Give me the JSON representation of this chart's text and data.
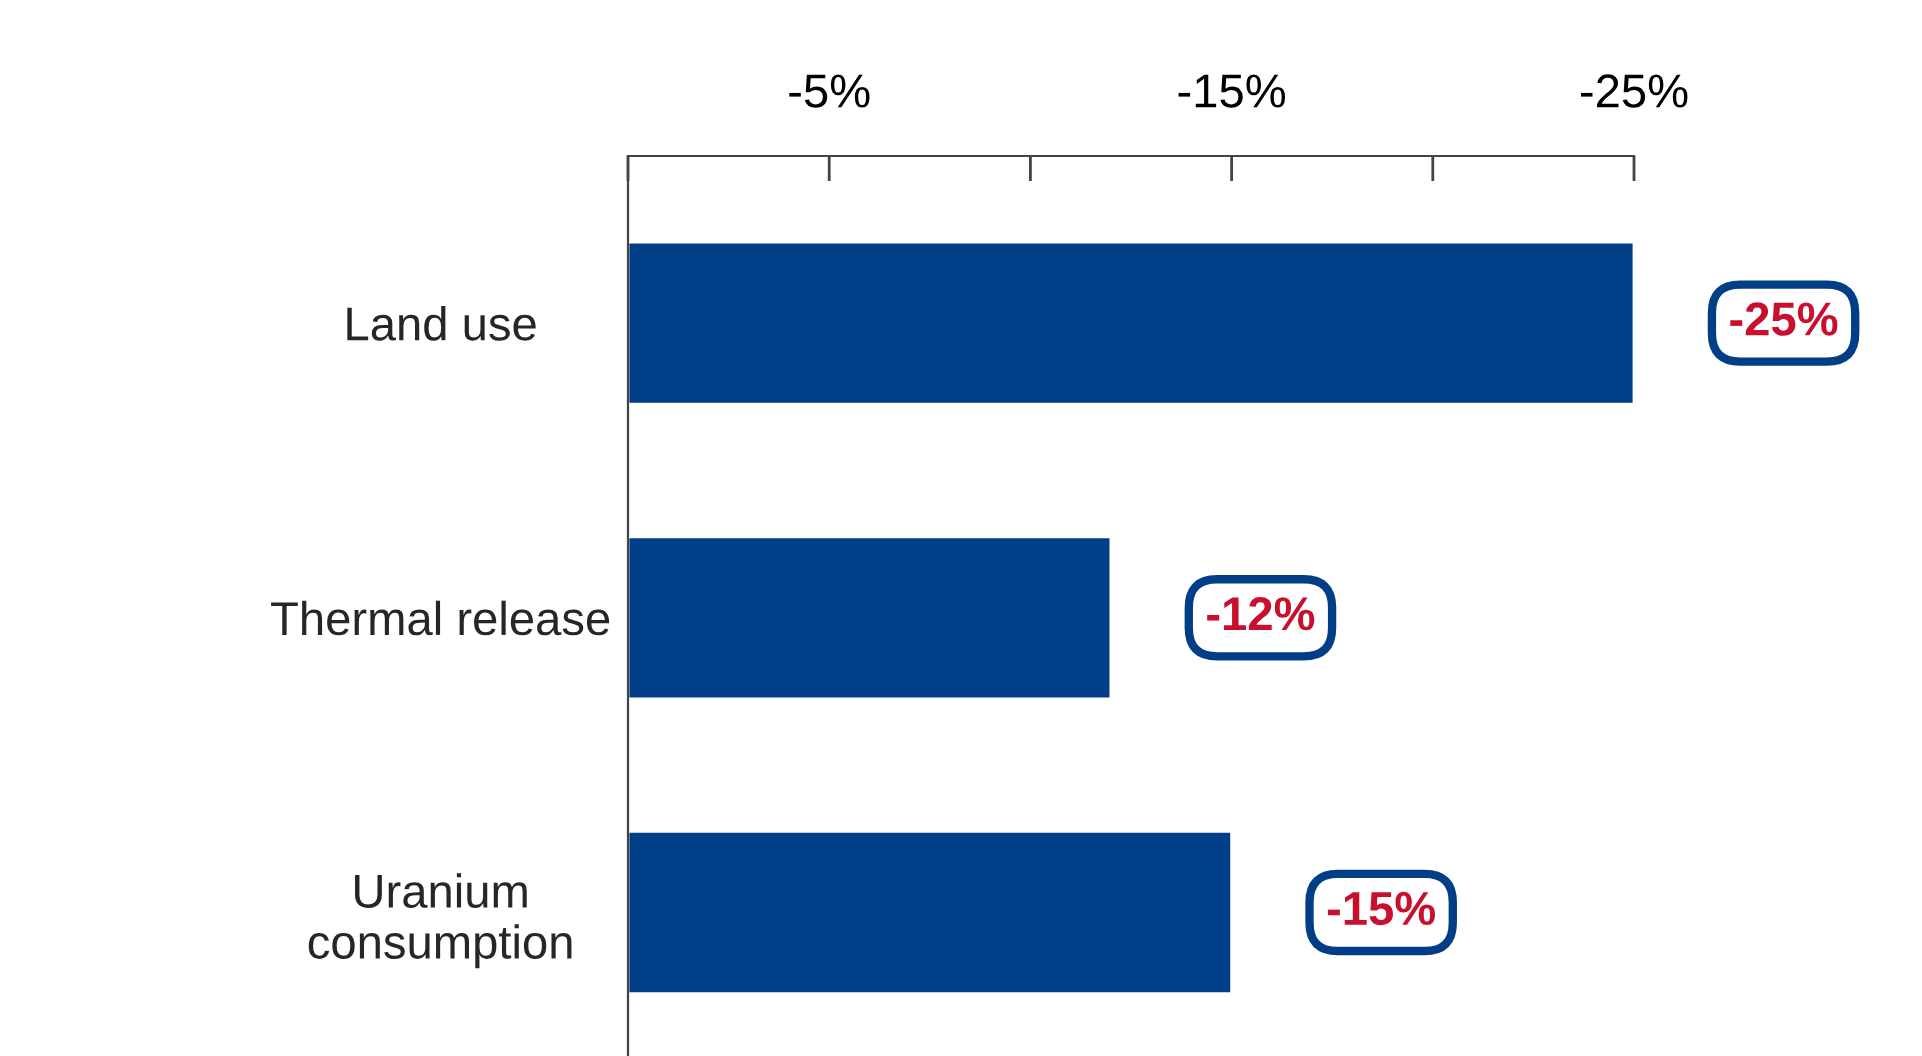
{
  "chart_data": {
    "type": "bar",
    "orientation": "horizontal",
    "categories": [
      "Land use",
      "Thermal release",
      "Uranium\nconsumption"
    ],
    "values": [
      -25,
      -12,
      -15
    ],
    "value_labels": [
      "-25%",
      "-12%",
      "-15%"
    ],
    "color": "#003f87",
    "xlim": [
      0,
      -25
    ],
    "xticks": [
      {
        "value": 0,
        "label": null
      },
      {
        "value": -5,
        "label": "-5%"
      },
      {
        "value": -10,
        "label": null
      },
      {
        "value": -15,
        "label": "-15%"
      },
      {
        "value": -20,
        "label": null
      },
      {
        "value": -25,
        "label": "-25%"
      }
    ],
    "grid": false,
    "legend": false
  }
}
